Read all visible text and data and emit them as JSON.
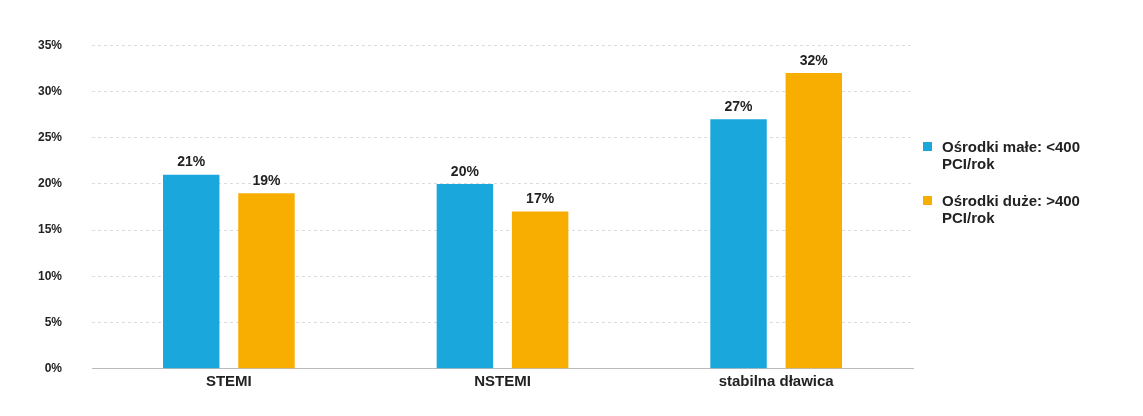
{
  "chart_data": {
    "type": "bar",
    "categories": [
      "STEMI",
      "NSTEMI",
      "stabilna dławica"
    ],
    "series": [
      {
        "name": "Ośrodki małe: <400 PCI/rok",
        "color": "#1aa7dc",
        "values": [
          21,
          20,
          27
        ]
      },
      {
        "name": "Ośrodki duże: >400 PCI/rok",
        "color": "#f7ae00",
        "values": [
          19,
          17,
          32
        ]
      }
    ],
    "ylim": [
      0,
      35
    ],
    "yticks": [
      {
        "value": 0,
        "label": "0%"
      },
      {
        "value": 5,
        "label": "5%"
      },
      {
        "value": 10,
        "label": "10%"
      },
      {
        "value": 15,
        "label": "15%"
      },
      {
        "value": 20,
        "label": "20%"
      },
      {
        "value": 25,
        "label": "25%"
      },
      {
        "value": 30,
        "label": "30%"
      },
      {
        "value": 35,
        "label": "35%"
      }
    ],
    "value_labels": [
      [
        "21%",
        "20%",
        "27%"
      ],
      [
        "19%",
        "17%",
        "32%"
      ]
    ],
    "grid": "y",
    "legend": "right"
  }
}
